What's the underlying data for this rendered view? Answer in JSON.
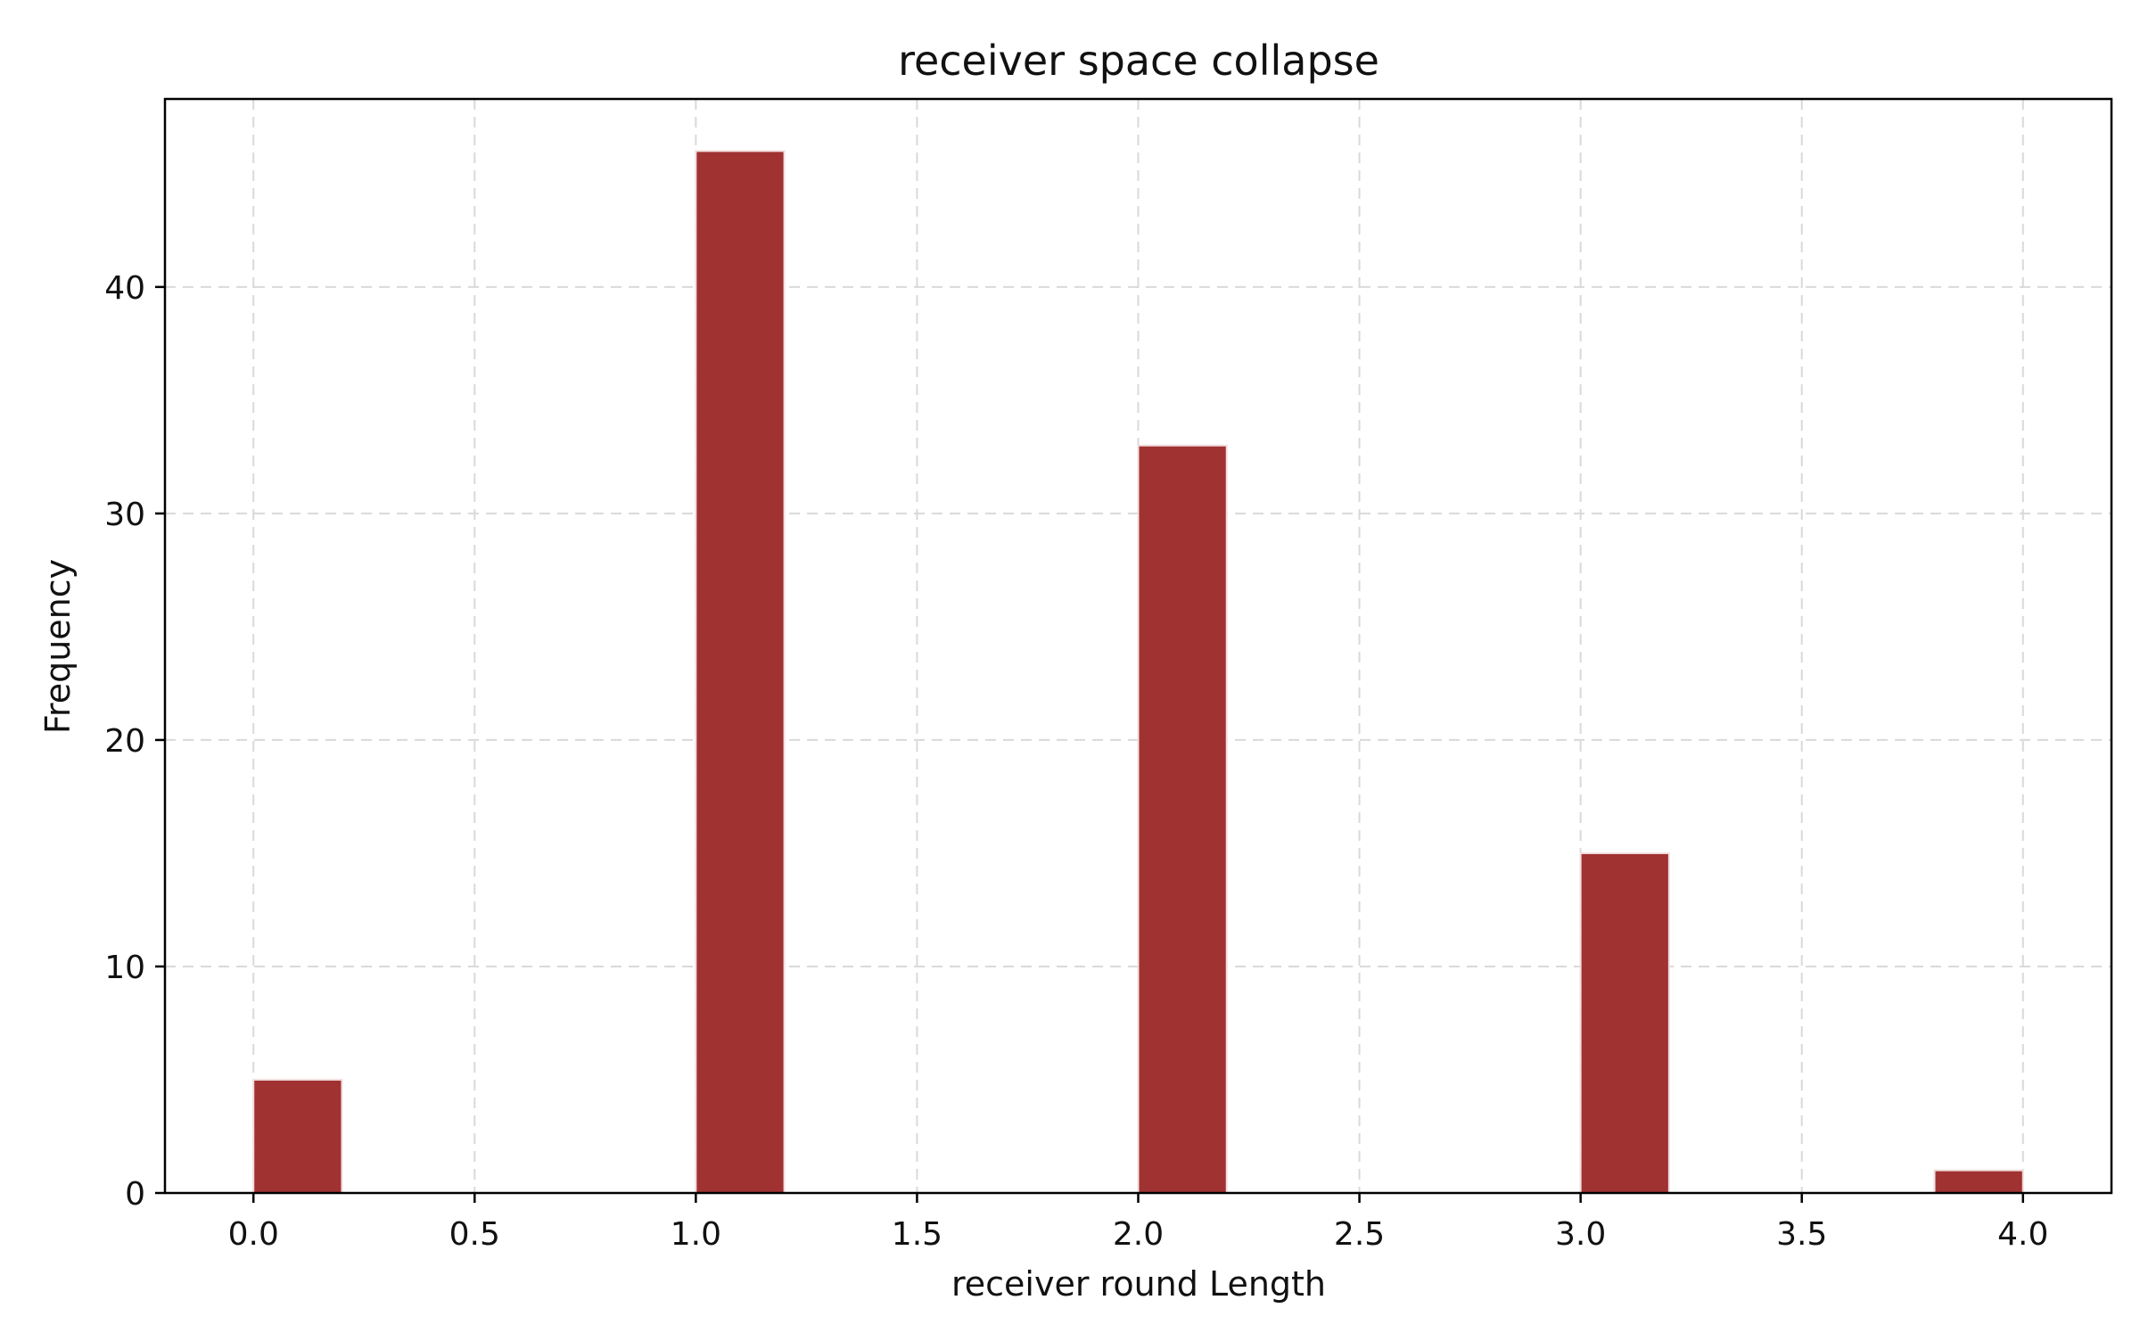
{
  "chart_data": {
    "type": "bar",
    "title": "receiver space collapse",
    "xlabel": "receiver round Length",
    "ylabel": "Frequency",
    "xlim": [
      -0.2,
      4.2
    ],
    "ylim": [
      0,
      48.3
    ],
    "xticks": [
      0.0,
      0.5,
      1.0,
      1.5,
      2.0,
      2.5,
      3.0,
      3.5,
      4.0
    ],
    "xtick_labels": [
      "0.0",
      "0.5",
      "1.0",
      "1.5",
      "2.0",
      "2.5",
      "3.0",
      "3.5",
      "4.0"
    ],
    "yticks": [
      0,
      10,
      20,
      30,
      40
    ],
    "ytick_labels": [
      "0",
      "10",
      "20",
      "30",
      "40"
    ],
    "grid": true,
    "bar_color": "#a03232",
    "bins": [
      {
        "x0": 0.0,
        "x1": 0.2,
        "value": 5
      },
      {
        "x0": 1.0,
        "x1": 1.2,
        "value": 46
      },
      {
        "x0": 2.0,
        "x1": 2.2,
        "value": 33
      },
      {
        "x0": 3.0,
        "x1": 3.2,
        "value": 15
      },
      {
        "x0": 3.8,
        "x1": 4.0,
        "value": 1
      }
    ]
  }
}
